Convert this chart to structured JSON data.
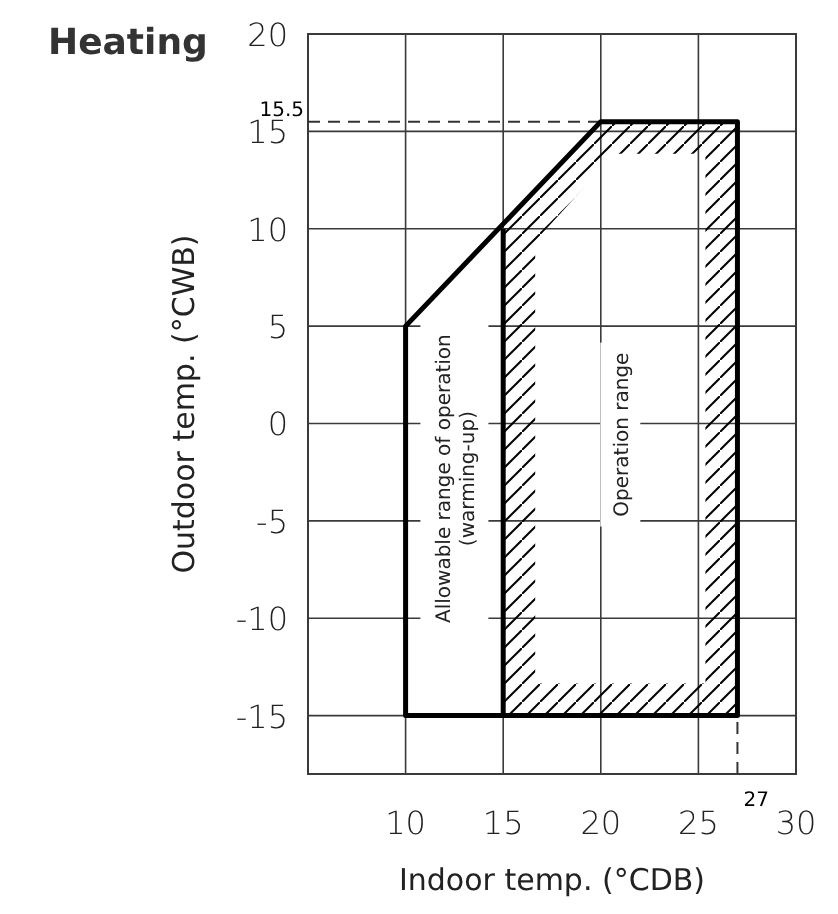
{
  "chart_data": {
    "type": "line",
    "title": "Heating",
    "xlabel": "Indoor temp. (°CDB)",
    "ylabel": "Outdoor temp. (°CWB)",
    "xlim": [
      5,
      30
    ],
    "xticks": [
      10,
      15,
      20,
      25,
      30
    ],
    "ylim": [
      -18,
      20
    ],
    "yticks": [
      -15,
      -10,
      -5,
      0,
      5,
      10,
      15,
      20
    ],
    "grid": true,
    "series": [
      {
        "color": "#000000",
        "x": [
          15,
          15,
          10,
          10,
          20,
          27,
          27,
          15
        ],
        "values": [
          10,
          -15,
          -15,
          5,
          15.5,
          15.5,
          -15,
          -15
        ]
      }
    ],
    "ref_lines": [
      {
        "axis": "y",
        "value": 15.5,
        "label": "15.5",
        "line_style": "dashed"
      },
      {
        "axis": "x",
        "value": 27,
        "label": "27",
        "line_style": "dashed"
      }
    ],
    "annotations": [
      "Allowable range of operation\n(warming-up)",
      "Operation range"
    ]
  }
}
